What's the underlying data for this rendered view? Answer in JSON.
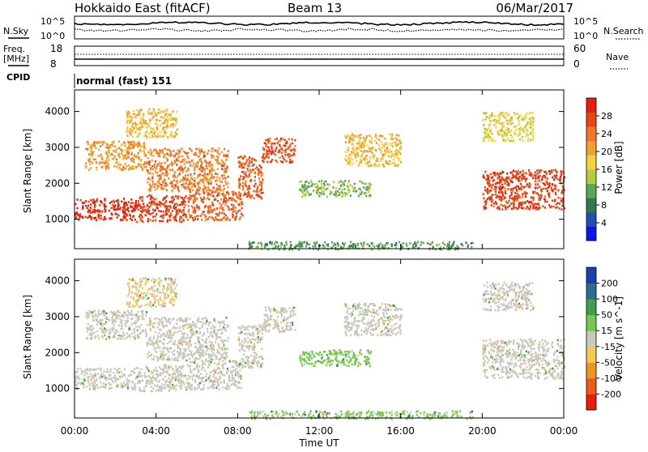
{
  "header": {
    "station": "Hokkaido East (fitACF)",
    "beam": "Beam 13",
    "date": "06/Mar/2017"
  },
  "top_panel": {
    "left_label": "N.Sky",
    "left_ticks": [
      "10^5",
      "10^0"
    ],
    "right_label": "N.Search",
    "right_ticks": [
      "10^5",
      "10^0"
    ]
  },
  "freq_panel": {
    "label_line1": "Freq.",
    "label_line2": "[MHz]",
    "left_ticks": [
      "18",
      "8"
    ],
    "right_label": "Nave",
    "right_ticks": [
      "60",
      "0"
    ]
  },
  "cpid_panel": {
    "label": "CPID",
    "text": "normal (fast) 151"
  },
  "chart_data": [
    {
      "type": "heatmap",
      "title": "",
      "quantity": "Power",
      "xlabel": "",
      "ylabel": "Slant Range [km]",
      "x_range_hours": [
        0,
        24
      ],
      "ylim_km": [
        180,
        4600
      ],
      "y_ticks": [
        "1000",
        "2000",
        "3000",
        "4000"
      ],
      "colorbar": {
        "label": "Power [dB]",
        "ticks": [
          "28",
          "24",
          "20",
          "16",
          "12",
          "8",
          "4"
        ],
        "range": [
          0,
          30
        ],
        "colors": [
          "#0a14ee",
          "#1e50b4",
          "#2d7a4a",
          "#5aa55a",
          "#b4cd3c",
          "#f5d23c",
          "#f0a030",
          "#f07828",
          "#e64614",
          "#e61e0a"
        ]
      },
      "regions": [
        {
          "t": [
            0.0,
            3.0
          ],
          "r": [
            1000,
            1600
          ],
          "level": 28
        },
        {
          "t": [
            3.0,
            5.5
          ],
          "r": [
            950,
            1700
          ],
          "level": 26
        },
        {
          "t": [
            5.5,
            8.2
          ],
          "r": [
            1000,
            1800
          ],
          "level": 24
        },
        {
          "t": [
            0.5,
            3.5
          ],
          "r": [
            2400,
            3200
          ],
          "level": 20
        },
        {
          "t": [
            3.5,
            7.5
          ],
          "r": [
            1800,
            3000
          ],
          "level": 22
        },
        {
          "t": [
            8.0,
            9.2
          ],
          "r": [
            1600,
            2800
          ],
          "level": 24
        },
        {
          "t": [
            9.2,
            10.8
          ],
          "r": [
            2600,
            3300
          ],
          "level": 25
        },
        {
          "t": [
            11.0,
            14.5
          ],
          "r": [
            1650,
            2100
          ],
          "level": 12
        },
        {
          "t": [
            13.2,
            16.0
          ],
          "r": [
            2500,
            3400
          ],
          "level": 18
        },
        {
          "t": [
            20.0,
            24.0
          ],
          "r": [
            1300,
            2400
          ],
          "level": 26
        },
        {
          "t": [
            20.0,
            22.5
          ],
          "r": [
            3200,
            4000
          ],
          "level": 16
        },
        {
          "t": [
            2.5,
            5.0
          ],
          "r": [
            3300,
            4100
          ],
          "level": 18
        },
        {
          "t": [
            8.5,
            19.5
          ],
          "r": [
            180,
            400
          ],
          "level": 10
        }
      ]
    },
    {
      "type": "heatmap",
      "title": "",
      "quantity": "Velocity",
      "xlabel": "Time UT",
      "ylabel": "Slant Range [km]",
      "x_range_hours": [
        0,
        24
      ],
      "x_ticks": [
        "00:00",
        "04:00",
        "08:00",
        "12:00",
        "16:00",
        "20:00",
        "00:00"
      ],
      "ylim_km": [
        180,
        4600
      ],
      "y_ticks": [
        "1000",
        "2000",
        "3000",
        "4000"
      ],
      "colorbar": {
        "label": "Velocity [m s^-1]",
        "ticks": [
          "200",
          "100",
          "50",
          "15",
          "-15",
          "-50",
          "-100",
          "-200"
        ],
        "range": [
          -250,
          250
        ],
        "colors": [
          "#e61e0a",
          "#f05a14",
          "#f0961e",
          "#f5c85a",
          "#c8c8c0",
          "#78c850",
          "#3ca050",
          "#2d6e8c",
          "#1e3cb4"
        ]
      },
      "regions": [
        {
          "t": [
            0.0,
            3.0
          ],
          "r": [
            1000,
            1600
          ],
          "level": 0
        },
        {
          "t": [
            3.0,
            5.5
          ],
          "r": [
            950,
            1700
          ],
          "level": 0
        },
        {
          "t": [
            5.5,
            8.2
          ],
          "r": [
            1000,
            1800
          ],
          "level": 0
        },
        {
          "t": [
            0.5,
            3.5
          ],
          "r": [
            2400,
            3200
          ],
          "level": 0
        },
        {
          "t": [
            3.5,
            7.5
          ],
          "r": [
            1800,
            3000
          ],
          "level": 0
        },
        {
          "t": [
            8.0,
            9.2
          ],
          "r": [
            1600,
            2800
          ],
          "level": 0
        },
        {
          "t": [
            9.2,
            10.8
          ],
          "r": [
            2600,
            3300
          ],
          "level": 0
        },
        {
          "t": [
            11.0,
            14.5
          ],
          "r": [
            1650,
            2100
          ],
          "level": 60
        },
        {
          "t": [
            13.2,
            16.0
          ],
          "r": [
            2500,
            3400
          ],
          "level": 0
        },
        {
          "t": [
            20.0,
            24.0
          ],
          "r": [
            1300,
            2400
          ],
          "level": 0
        },
        {
          "t": [
            20.0,
            22.5
          ],
          "r": [
            3200,
            4000
          ],
          "level": 0
        },
        {
          "t": [
            2.5,
            5.0
          ],
          "r": [
            3300,
            4100
          ],
          "level": -30
        },
        {
          "t": [
            8.5,
            19.5
          ],
          "r": [
            180,
            400
          ],
          "level": 40
        }
      ]
    }
  ]
}
